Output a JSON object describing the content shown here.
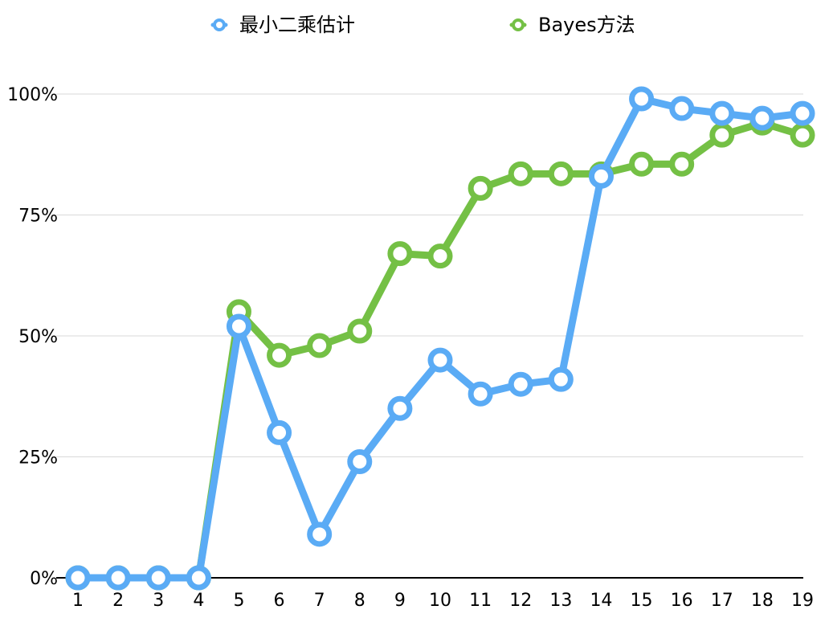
{
  "chart_data": {
    "type": "line",
    "x": [
      "1",
      "2",
      "3",
      "4",
      "5",
      "6",
      "7",
      "8",
      "9",
      "10",
      "11",
      "12",
      "13",
      "14",
      "15",
      "16",
      "17",
      "18",
      "19"
    ],
    "series": [
      {
        "name": "最小二乘估计",
        "color": "#5aabf5",
        "values": [
          0,
          0,
          0,
          0,
          52,
          30,
          9,
          24,
          35,
          45,
          38,
          40,
          41,
          83,
          99,
          97,
          96,
          95,
          96
        ]
      },
      {
        "name": "Bayes方法",
        "color": "#74c045",
        "values": [
          0,
          0,
          0,
          0,
          55,
          46,
          48,
          51,
          67,
          66.5,
          80.5,
          83.5,
          83.5,
          83.5,
          85.5,
          85.5,
          91.5,
          94,
          91.5
        ]
      }
    ],
    "yticks": [
      "0%",
      "25%",
      "50%",
      "75%",
      "100%"
    ],
    "ylim": [
      0,
      100
    ],
    "grid": true,
    "legend": "top-center",
    "title": "",
    "xlabel": "",
    "ylabel": ""
  }
}
